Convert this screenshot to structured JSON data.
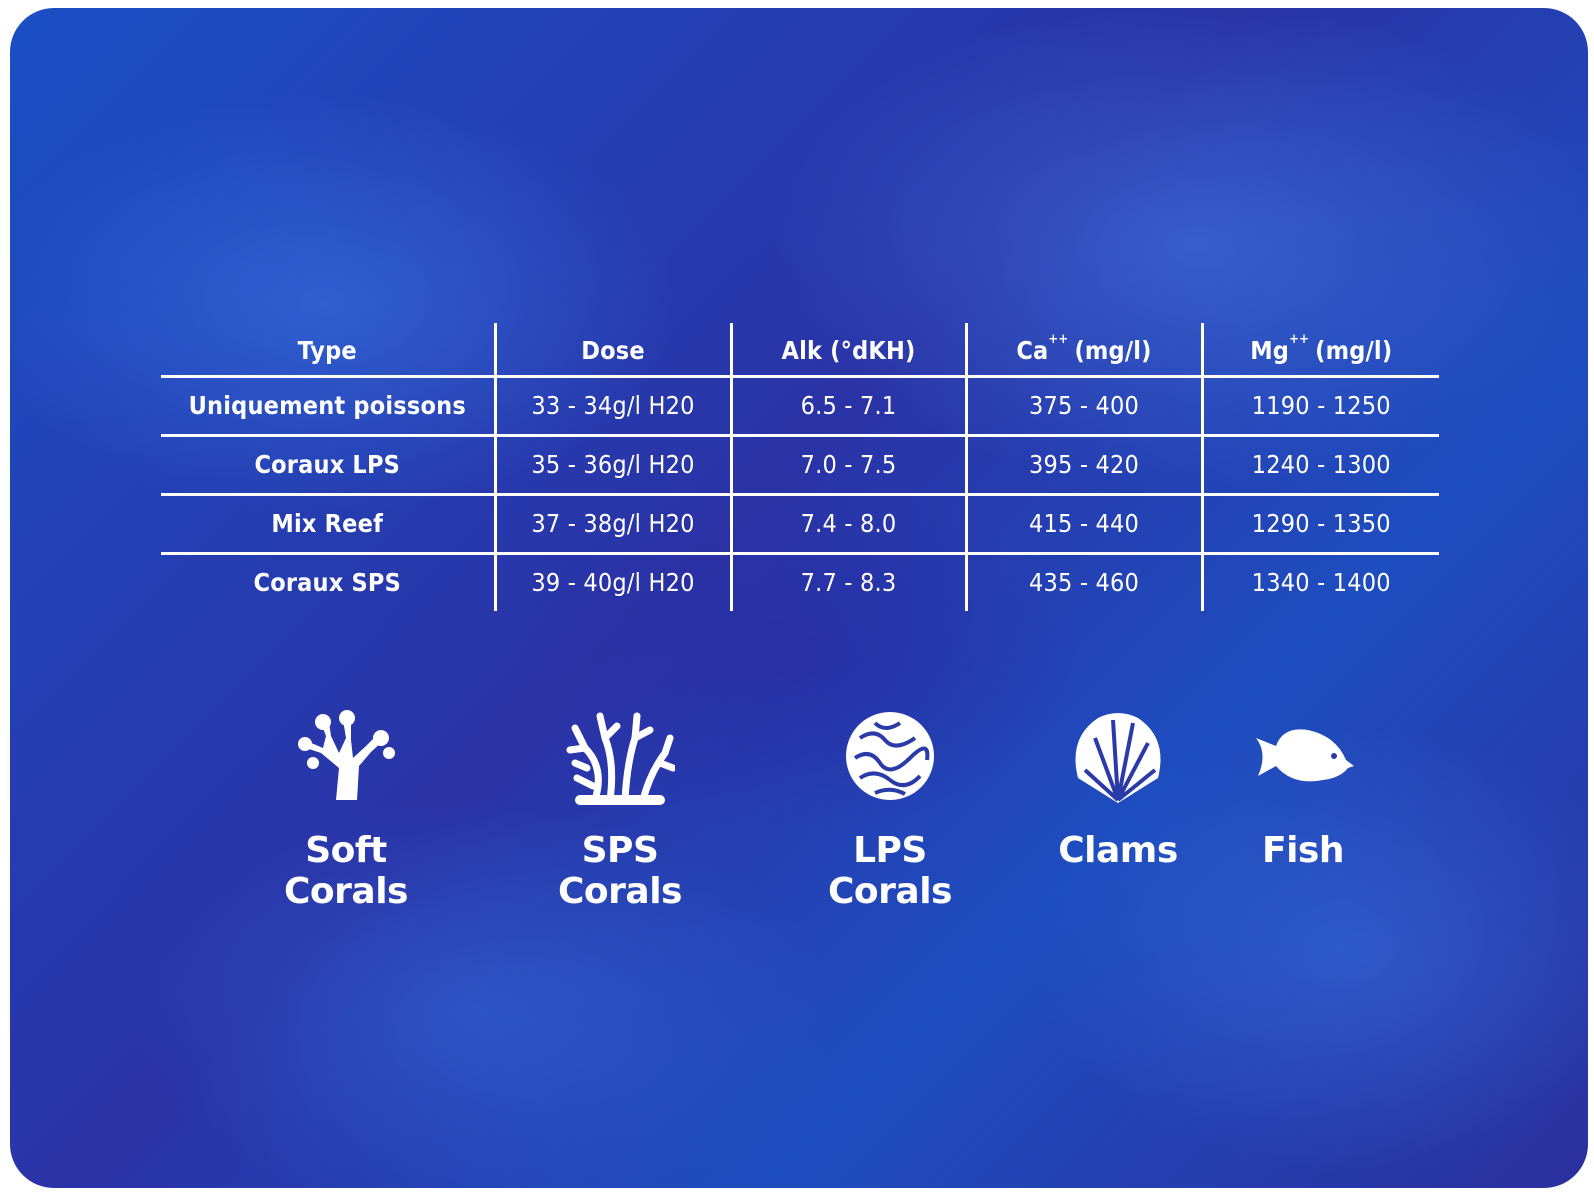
{
  "table": {
    "header": [
      "Type",
      "Dose",
      "Alk (°dKH)",
      {
        "base": "Ca",
        "sup": "++",
        "unit": "(mg/l)"
      },
      {
        "base": "Mg",
        "sup": "++",
        "unit": "(mg/l)"
      }
    ],
    "rows": [
      [
        "Uniquement poissons",
        "33 - 34g/l H20",
        "6.5 - 7.1",
        "375 - 400",
        "1190 - 1250"
      ],
      [
        "Coraux LPS",
        "35 - 36g/l H20",
        "7.0 - 7.5",
        "395 - 420",
        "1240 - 1300"
      ],
      [
        "Mix Reef",
        "37 - 38g/l H20",
        "7.4 - 8.0",
        "415 - 440",
        "1290 - 1350"
      ],
      [
        "Coraux SPS",
        "39 - 40g/l H20",
        "7.7 - 8.3",
        "435 - 460",
        "1340 - 1400"
      ]
    ]
  },
  "icons": [
    "Soft Corals",
    "SPS Corals",
    "LPS Corals",
    "Clams",
    "Fish"
  ]
}
